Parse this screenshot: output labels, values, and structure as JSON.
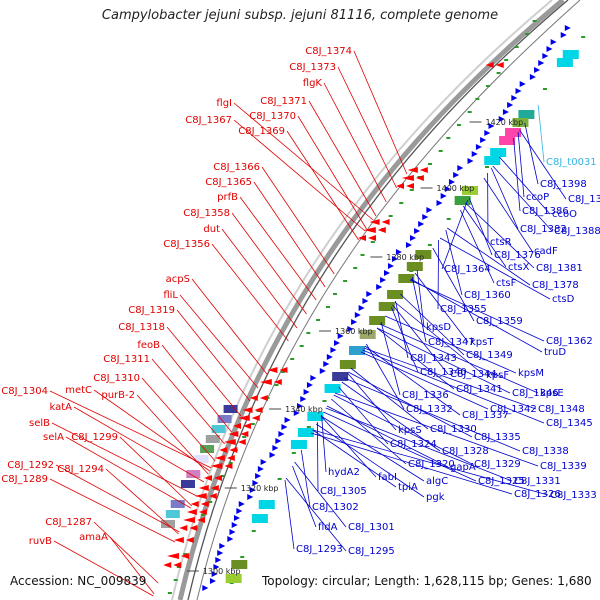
{
  "title": "Campylobacter jejuni subsp. jejuni 81116, complete genome",
  "footer": {
    "accession": "Accession: NC_009839",
    "topology": "Topology: circular; Length: 1,628,115 bp; Genes: 1,680"
  },
  "ticks": [
    "1420 kbp",
    "1400 kbp",
    "1380 kbp",
    "1360 kbp",
    "1340 kbp",
    "1320 kbp",
    "1300 kbp"
  ],
  "colors": {
    "reverse_strand_labels": "#e00000",
    "forward_strand_labels": "#0000cc",
    "trna_label": "#33b5e5",
    "backbone": "#9a9a9a",
    "reverse_cds": "#ff0000",
    "forward_cds": "#0000ee",
    "gc_dots": "#2a9a2a"
  },
  "labels_left": [
    "C8J_1374",
    "C8J_1373",
    "flgK",
    "flgI",
    "C8J_1371",
    "C8J_1370",
    "C8J_1367",
    "C8J_1369",
    "C8J_1366",
    "C8J_1365",
    "prfB",
    "C8J_1358",
    "dut",
    "C8J_1356",
    "acpS",
    "fliL",
    "C8J_1319",
    "C8J_1318",
    "feoB",
    "C8J_1311",
    "C8J_1310",
    "metC",
    "purB-2",
    "C8J_1304",
    "katA",
    "selB",
    "selA",
    "C8J_1299",
    "C8J_1292",
    "C8J_1294",
    "C8J_1289",
    "C8J_1287",
    "ruvB",
    "amaA"
  ],
  "labels_right": [
    "C8J_t0031",
    "C8J_1398",
    "ccoP",
    "C8J_1397",
    "C8J_1386",
    "ccoO",
    "C8J_1382",
    "C8J_1388",
    "ctsR",
    "cadF",
    "C8J_1376",
    "ctsX",
    "C8J_1381",
    "C8J_1364",
    "ctsF",
    "C8J_1378",
    "ctsD",
    "C8J_1360",
    "C8J_1355",
    "C8J_1359",
    "kpsD",
    "C8J_1362",
    "C8J_1347",
    "kpsT",
    "truD",
    "C8J_1343",
    "C8J_1349",
    "C8J_1340",
    "C8J_1344",
    "kpsF",
    "kpsM",
    "C8J_1341",
    "C8J_1346",
    "kpsE",
    "C8J_1336",
    "C8J_1342",
    "C8J_1348",
    "C8J_1332",
    "C8J_1337",
    "C8J_1345",
    "kpsS",
    "C8J_1330",
    "C8J_1335",
    "C8J_1328",
    "C8J_1338",
    "C8J_1324",
    "gapA",
    "C8J_1320",
    "C8J_1329",
    "C8J_1339",
    "hydA2",
    "fabI",
    "algC",
    "C8J_1325",
    "C8J_1331",
    "tpiA",
    "C8J_1326",
    "C8J_1333",
    "C8J_1305",
    "pgk",
    "C8J_1302",
    "fldA",
    "C8J_1301",
    "C8J_1293",
    "C8J_1295"
  ]
}
